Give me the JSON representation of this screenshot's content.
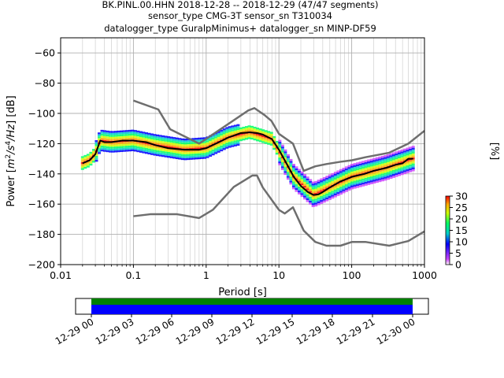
{
  "chart_data": {
    "type": "heatmap",
    "title_lines": [
      "BK.PINL.00.HHN   2018-12-28 -- 2018-12-29  (47/47 segments)",
      "sensor_type CMG-3T sensor_sn T310034",
      "datalogger_type GuralpMinimus+ datalogger_sn MINP-DF59"
    ],
    "xlabel": "Period [s]",
    "ylabel_parts": [
      "Power [",
      "m",
      "2",
      "/s",
      "4",
      "/Hz",
      "] [dB]"
    ],
    "x_scale": "log",
    "xlim": [
      0.01,
      1000
    ],
    "ylim": [
      -200,
      -50
    ],
    "x_ticks": [
      0.01,
      0.1,
      1,
      10,
      100,
      1000
    ],
    "x_tick_labels": [
      "0.01",
      "0.1",
      "1",
      "10",
      "100",
      "1000"
    ],
    "y_ticks": [
      -200,
      -180,
      -160,
      -140,
      -120,
      -100,
      -80,
      -60
    ],
    "y_tick_labels": [
      "−200",
      "−180",
      "−160",
      "−140",
      "−120",
      "−100",
      "−80",
      "−60"
    ],
    "grid": true,
    "colors": {
      "noise_models": "#6e6e6e",
      "mean": "#000000",
      "pdf_colormap": [
        "#ffffff",
        "#cc44ff",
        "#0000ff",
        "#00cccc",
        "#00ff66",
        "#ccff00",
        "#ffaa00",
        "#ff0000"
      ],
      "timeline_bar_top": "#008000",
      "timeline_bar_bottom": "#0000ff"
    },
    "colorbar": {
      "label": "[%]",
      "min": 0,
      "max": 30,
      "ticks": [
        0,
        5,
        10,
        15,
        20,
        25,
        30
      ],
      "tick_labels": [
        "0",
        "5",
        "10",
        "15",
        "20",
        "25",
        "30"
      ]
    },
    "series": [
      {
        "role": "new-high-noise-model",
        "x": [
          0.1,
          0.22,
          0.32,
          0.8,
          3.8,
          4.6,
          6.3,
          7.9,
          10,
          15.6,
          21.9,
          31.6,
          45,
          70,
          101,
          154,
          328,
          600,
          1000
        ],
        "y": [
          -91.5,
          -97.4,
          -110.5,
          -120,
          -98,
          -96.5,
          -101,
          -105,
          -113.5,
          -120,
          -138,
          -135,
          -133.5,
          -132,
          -131,
          -129,
          -126,
          -120,
          -111.5
        ]
      },
      {
        "role": "new-low-noise-model",
        "x": [
          0.1,
          0.17,
          0.4,
          0.8,
          1.24,
          2.4,
          4.3,
          5,
          6,
          10,
          12,
          15.6,
          21.9,
          31.6,
          45,
          70,
          101,
          154,
          328,
          600,
          1000
        ],
        "y": [
          -168,
          -166.7,
          -166.7,
          -169.2,
          -163.7,
          -148.6,
          -141.1,
          -141.1,
          -149,
          -163.8,
          -166.2,
          -162.1,
          -177.5,
          -185,
          -187.5,
          -187.5,
          -185,
          -185,
          -187.5,
          -184.4,
          -178
        ]
      },
      {
        "role": "mean-psd",
        "x": [
          0.02,
          0.025,
          0.03,
          0.035,
          0.04,
          0.05,
          0.07,
          0.1,
          0.15,
          0.2,
          0.3,
          0.5,
          0.8,
          1,
          1.5,
          2,
          3,
          4,
          5,
          6,
          8,
          10,
          13,
          16,
          20,
          25,
          30,
          35,
          40,
          50,
          70,
          100,
          150,
          200,
          300,
          400,
          500,
          600,
          700
        ],
        "y": [
          -133,
          -131,
          -127,
          -118,
          -119,
          -119,
          -118,
          -118,
          -119,
          -121,
          -123,
          -124,
          -124,
          -123,
          -119,
          -116,
          -113,
          -112.5,
          -113,
          -114,
          -117,
          -124,
          -134,
          -142,
          -148,
          -152,
          -154,
          -153.5,
          -152,
          -149,
          -145,
          -142,
          -140,
          -138,
          -136,
          -134,
          -133,
          -130,
          -130
        ]
      }
    ],
    "pdf_cloud": [
      {
        "x": 0.02,
        "y": -133
      },
      {
        "x": 0.025,
        "y": -131
      },
      {
        "x": 0.03,
        "y": -127
      },
      {
        "x": 0.035,
        "y": -118
      },
      {
        "x": 0.05,
        "y": -119
      },
      {
        "x": 0.1,
        "y": -118
      },
      {
        "x": 0.2,
        "y": -121
      },
      {
        "x": 0.5,
        "y": -124
      },
      {
        "x": 1,
        "y": -123
      },
      {
        "x": 2,
        "y": -116
      },
      {
        "x": 4,
        "y": -112.5
      },
      {
        "x": 8,
        "y": -117
      },
      {
        "x": 16,
        "y": -142
      },
      {
        "x": 30,
        "y": -154
      },
      {
        "x": 50,
        "y": -149
      },
      {
        "x": 100,
        "y": -142
      },
      {
        "x": 300,
        "y": -136
      },
      {
        "x": 700,
        "y": -130
      }
    ],
    "timeline": {
      "ticks": [
        "12-29 00",
        "12-29 03",
        "12-29 06",
        "12-29 09",
        "12-29 12",
        "12-29 15",
        "12-29 18",
        "12-29 21",
        "12-30 00"
      ],
      "covered_fraction": [
        0.0,
        1.0
      ]
    }
  }
}
